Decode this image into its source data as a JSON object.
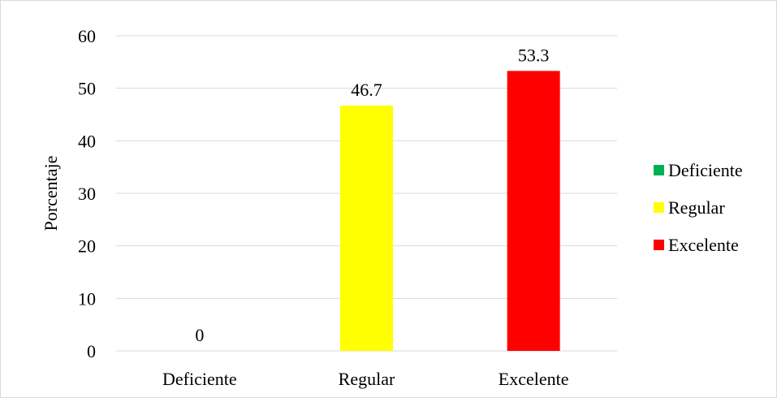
{
  "chart_data": {
    "type": "bar",
    "categories": [
      "Deficiente",
      "Regular",
      "Excelente"
    ],
    "values": [
      0,
      46.7,
      53.3
    ],
    "data_labels": [
      "0",
      "46.7",
      "53.3"
    ],
    "colors": [
      "#00b050",
      "#ffff00",
      "#ff0000"
    ],
    "title": "",
    "xlabel": "",
    "ylabel": "Porcentaje",
    "ylim": [
      0,
      60
    ],
    "yticks": [
      0,
      10,
      20,
      30,
      40,
      50,
      60
    ],
    "ytick_labels": [
      "0",
      "10",
      "20",
      "30",
      "40",
      "50",
      "60"
    ],
    "grid": true,
    "grid_color": "#d9d9d9",
    "legend": {
      "position": "right",
      "entries": [
        "Deficiente",
        "Regular",
        "Excelente"
      ]
    }
  }
}
